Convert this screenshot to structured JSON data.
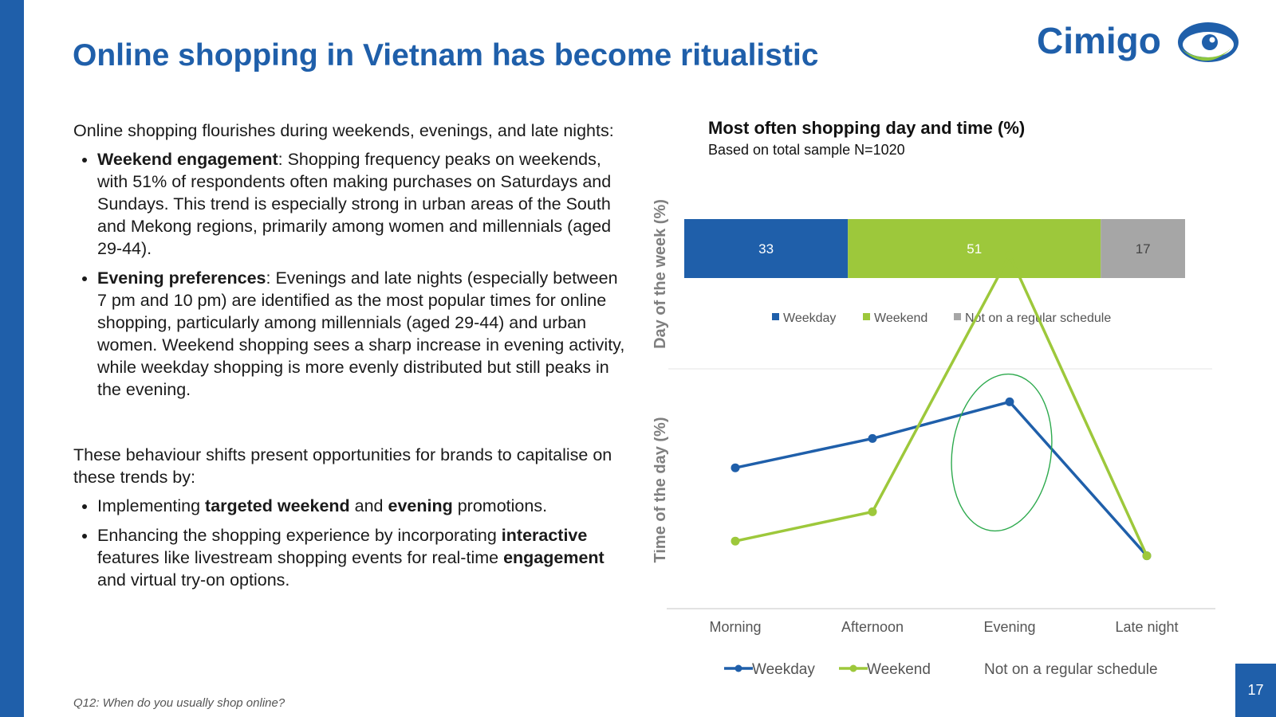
{
  "title": "Online shopping in Vietnam has become ritualistic",
  "logo": {
    "text": "Cimigo",
    "colors": {
      "blue": "#1f5faa",
      "green": "#8dc63f"
    }
  },
  "intro": "Online shopping flourishes during weekends, evenings, and late nights:",
  "bullets1": [
    {
      "bold": "Weekend engagement",
      "text": ": Shopping frequency peaks on weekends, with 51% of respondents often making purchases on Saturdays and Sundays. This trend is especially strong in urban areas of the South and Mekong regions, primarily among women and millennials (aged 29-44)."
    },
    {
      "bold": "Evening preferences",
      "text": ": Evenings and late nights (especially between 7 pm and 10 pm) are identified as the most popular times for online shopping, particularly among millennials (aged 29-44)  and urban women. Weekend shopping sees a sharp increase in evening activity, while weekday shopping is more evenly distributed but still peaks in the evening."
    }
  ],
  "para2": "These behaviour shifts present opportunities for brands to capitalise on these trends by:",
  "bullets2": [
    {
      "t1": "Implementing ",
      "b1": "targeted weekend",
      "t2": " and ",
      "b2": "evening",
      "t3": " promotions."
    },
    {
      "t1": "Enhancing the shopping experience by incorporating ",
      "b1": "interactive",
      "t2": " features like livestream shopping events for real-time ",
      "b2": "engagement",
      "t3": " and virtual try-on options."
    }
  ],
  "footnote": "Q12: When do you usually shop online?",
  "page_number": "17",
  "colors": {
    "accent": "#1f5faa",
    "weekday": "#1f5faa",
    "weekend": "#9dc83b",
    "irregular": "#a6a6a6",
    "highlight": "#2eaa4e"
  },
  "chart_data": [
    {
      "type": "bar",
      "orientation": "horizontal-stacked-100",
      "title": "Most often shopping day and time (%)",
      "subtitle": "Based on total sample N=1020",
      "ylabel": "Day of the week (%)",
      "series": [
        {
          "name": "Weekday",
          "values": [
            33
          ]
        },
        {
          "name": "Weekend",
          "values": [
            51
          ]
        },
        {
          "name": "Not on a regular schedule",
          "values": [
            17
          ]
        }
      ],
      "legend": "bottom"
    },
    {
      "type": "line",
      "ylabel": "Time of the day (%)",
      "categories": [
        "Morning",
        "Afternoon",
        "Evening",
        "Late night"
      ],
      "ylim": [
        0,
        50
      ],
      "series": [
        {
          "name": "Weekday",
          "values": [
            19,
            23,
            28,
            7
          ]
        },
        {
          "name": "Weekend",
          "values": [
            9,
            13,
            48,
            7
          ]
        }
      ],
      "legend_extra": "Not on a regular schedule",
      "highlight": "Evening",
      "legend": "bottom"
    }
  ]
}
